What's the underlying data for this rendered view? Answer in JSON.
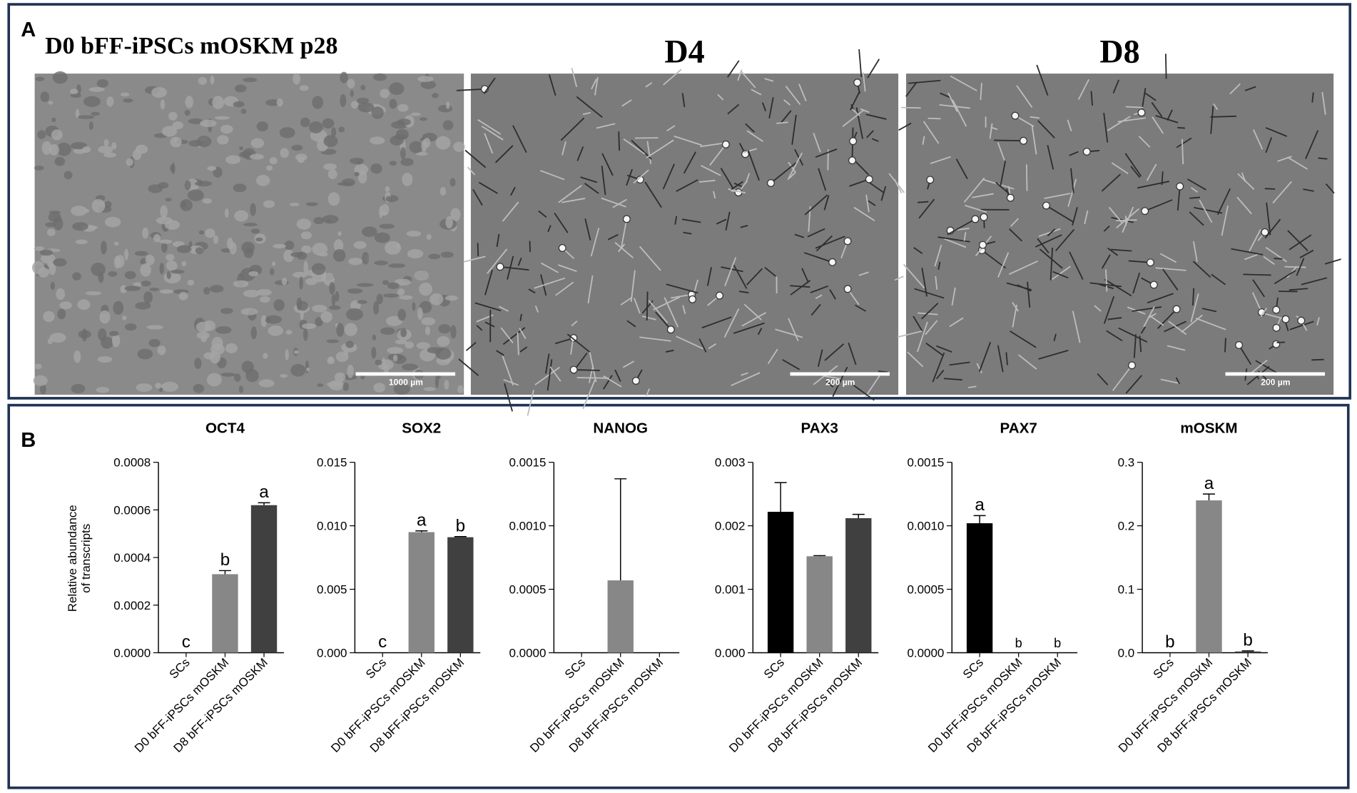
{
  "panel_a": {
    "label": "A",
    "images": [
      {
        "title": "D0 bFF-iPSCs mOSKM p28",
        "scale_bar": "1000 µm"
      },
      {
        "title": "D4",
        "scale_bar": "200 µm"
      },
      {
        "title": "D8",
        "scale_bar": "200 µm"
      }
    ]
  },
  "panel_b": {
    "label": "B",
    "ylabel": [
      "Relative abundance",
      "of transcripts"
    ]
  },
  "chart_data": [
    {
      "type": "bar",
      "title": "OCT4",
      "categories": [
        "SCs",
        "D0 bFF-iPSCs mOSKM",
        "D8 bFF-iPSCs mOSKM"
      ],
      "values": [
        0,
        0.00033,
        0.00062
      ],
      "errors": [
        0,
        1.5e-05,
        1e-05
      ],
      "colors": [
        "#000000",
        "#878787",
        "#404040"
      ],
      "annotations": [
        "c",
        "b",
        "a"
      ],
      "ylim": [
        0,
        0.0008
      ],
      "yticks": [
        {
          "value": 0,
          "label": "0.0000"
        },
        0.0002,
        0.0004,
        0.0006,
        0.0008
      ]
    },
    {
      "type": "bar",
      "title": "SOX2",
      "categories": [
        "SCs",
        "D0 bFF-iPSCs mOSKM",
        "D8 bFF-iPSCs mOSKM"
      ],
      "values": [
        0,
        0.0095,
        0.0091
      ],
      "errors": [
        0,
        0.0001,
        5e-05
      ],
      "colors": [
        "#000000",
        "#878787",
        "#404040"
      ],
      "annotations": [
        "c",
        "a",
        "b"
      ],
      "ylim": [
        0,
        0.015
      ],
      "yticks": [
        {
          "value": 0,
          "label": "0.000"
        },
        0.005,
        {
          "value": 0.01,
          "label": "0.010"
        },
        0.015
      ]
    },
    {
      "type": "bar",
      "title": "NANOG",
      "categories": [
        "SCs",
        "D0 bFF-iPSCs mOSKM",
        "D8 bFF-iPSCs mOSKM"
      ],
      "values": [
        0,
        0.00057,
        0
      ],
      "errors": [
        0,
        0.0008,
        0
      ],
      "colors": [
        "#000000",
        "#878787",
        "#404040"
      ],
      "annotations": [
        null,
        null,
        null
      ],
      "ylim": [
        0,
        0.0015
      ],
      "yticks": [
        {
          "value": 0,
          "label": "0.0000"
        },
        0.0005,
        {
          "value": 0.001,
          "label": "0.0010"
        },
        0.0015
      ]
    },
    {
      "type": "bar",
      "title": "PAX3",
      "categories": [
        "SCs",
        "D0 bFF-iPSCs mOSKM",
        "D8 bFF-iPSCs mOSKM"
      ],
      "values": [
        0.00222,
        0.00152,
        0.00212
      ],
      "errors": [
        0.00046,
        1e-05,
        6e-05
      ],
      "colors": [
        "#000000",
        "#878787",
        "#404040"
      ],
      "annotations": [
        null,
        null,
        null
      ],
      "ylim": [
        0,
        0.003
      ],
      "yticks": [
        {
          "value": 0,
          "label": "0.000"
        },
        0.001,
        0.002,
        0.003
      ]
    },
    {
      "type": "bar",
      "title": "PAX7",
      "categories": [
        "SCs",
        "D0 bFF-iPSCs mOSKM",
        "D8 bFF-iPSCs mOSKM"
      ],
      "values": [
        0.00102,
        0,
        0
      ],
      "errors": [
        6e-05,
        0,
        0
      ],
      "colors": [
        "#000000",
        "#878787",
        "#404040"
      ],
      "annotations": [
        "a",
        "b",
        "b"
      ],
      "ylim": [
        0,
        0.0015
      ],
      "yticks": [
        {
          "value": 0,
          "label": "0.0000"
        },
        0.0005,
        {
          "value": 0.001,
          "label": "0.0010"
        },
        0.0015
      ]
    },
    {
      "type": "bar",
      "title": "mOSKM",
      "categories": [
        "SCs",
        "D0 bFF-iPSCs mOSKM",
        "D8 bFF-iPSCs mOSKM"
      ],
      "values": [
        0,
        0.24,
        0.002
      ],
      "errors": [
        0,
        0.01,
        0.001
      ],
      "colors": [
        "#000000",
        "#878787",
        "#404040"
      ],
      "annotations": [
        "b",
        "a",
        "b"
      ],
      "ylim": [
        0,
        0.3
      ],
      "yticks": [
        {
          "value": 0,
          "label": "0.0"
        },
        0.1,
        0.2,
        0.3
      ]
    }
  ]
}
